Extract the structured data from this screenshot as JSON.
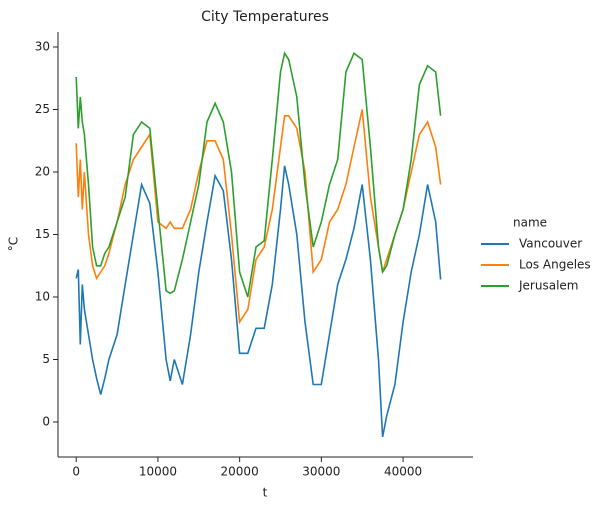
{
  "chart_data": {
    "type": "line",
    "title": "City Temperatures",
    "x_label": "t",
    "y_label": "°C",
    "legend_title": "name",
    "legend_position": "outside right",
    "grid": false,
    "x": [
      0,
      250,
      500,
      750,
      1000,
      1500,
      2000,
      2500,
      3000,
      3500,
      4000,
      5000,
      6000,
      7000,
      8000,
      9000,
      10000,
      11000,
      11500,
      12000,
      13000,
      14000,
      15000,
      16000,
      17000,
      18000,
      19000,
      20000,
      21000,
      22000,
      23000,
      24000,
      25000,
      25500,
      26000,
      27000,
      28000,
      29000,
      30000,
      31000,
      32000,
      33000,
      34000,
      35000,
      36000,
      37000,
      37500,
      38000,
      39000,
      40000,
      41000,
      42000,
      43000,
      44000,
      44600
    ],
    "series": [
      {
        "name": "Vancouver",
        "color": "#1f77b4",
        "values": [
          11.5,
          12.2,
          6.2,
          11,
          9,
          7,
          5,
          3.5,
          2.2,
          3.5,
          5,
          7,
          11,
          15,
          19,
          17.5,
          12,
          5,
          3.3,
          5,
          3,
          7,
          12,
          16,
          19.7,
          18.5,
          13,
          5.5,
          5.5,
          7.5,
          7.5,
          11,
          17,
          20.5,
          19,
          15,
          8,
          3,
          3,
          7,
          11,
          13,
          15.5,
          19,
          13,
          5,
          -1.2,
          0.5,
          3,
          8,
          12,
          15,
          19,
          16,
          11.4
        ]
      },
      {
        "name": "Los Angeles",
        "color": "#ff7f0e",
        "values": [
          22.3,
          18,
          21,
          17,
          20,
          15,
          12.5,
          11.5,
          12,
          12.5,
          13.5,
          16,
          19,
          21,
          22,
          23,
          16,
          15.5,
          16,
          15.5,
          15.5,
          17,
          20,
          22.5,
          22.5,
          21,
          15,
          8,
          9,
          13,
          14,
          17,
          22,
          24.5,
          24.5,
          23.5,
          20,
          12,
          13,
          16,
          17,
          19,
          22,
          25,
          18,
          14,
          12,
          13,
          15,
          17,
          20,
          23,
          24,
          22,
          19
        ]
      },
      {
        "name": "Jerusalem",
        "color": "#2ca02c",
        "values": [
          27.6,
          23.5,
          26,
          24,
          23,
          19,
          14,
          12.5,
          12.5,
          13.5,
          14,
          16,
          18,
          23,
          24,
          23.5,
          17,
          10.5,
          10.3,
          10.5,
          13,
          16,
          19,
          24,
          25.5,
          24,
          20,
          12,
          10,
          14,
          14.5,
          21,
          28,
          29.5,
          29,
          26,
          19,
          14,
          16,
          19,
          21,
          28,
          29.5,
          29,
          22,
          14,
          12,
          12.5,
          15,
          17,
          21,
          27,
          28.5,
          28,
          24.5
        ]
      }
    ],
    "xlim": [
      -2230,
      48560
    ],
    "xticks": [
      0,
      10000,
      20000,
      30000,
      40000
    ],
    "ylim": [
      -2.8,
      31.2
    ],
    "yticks": [
      0,
      5,
      10,
      15,
      20,
      25,
      30
    ]
  }
}
